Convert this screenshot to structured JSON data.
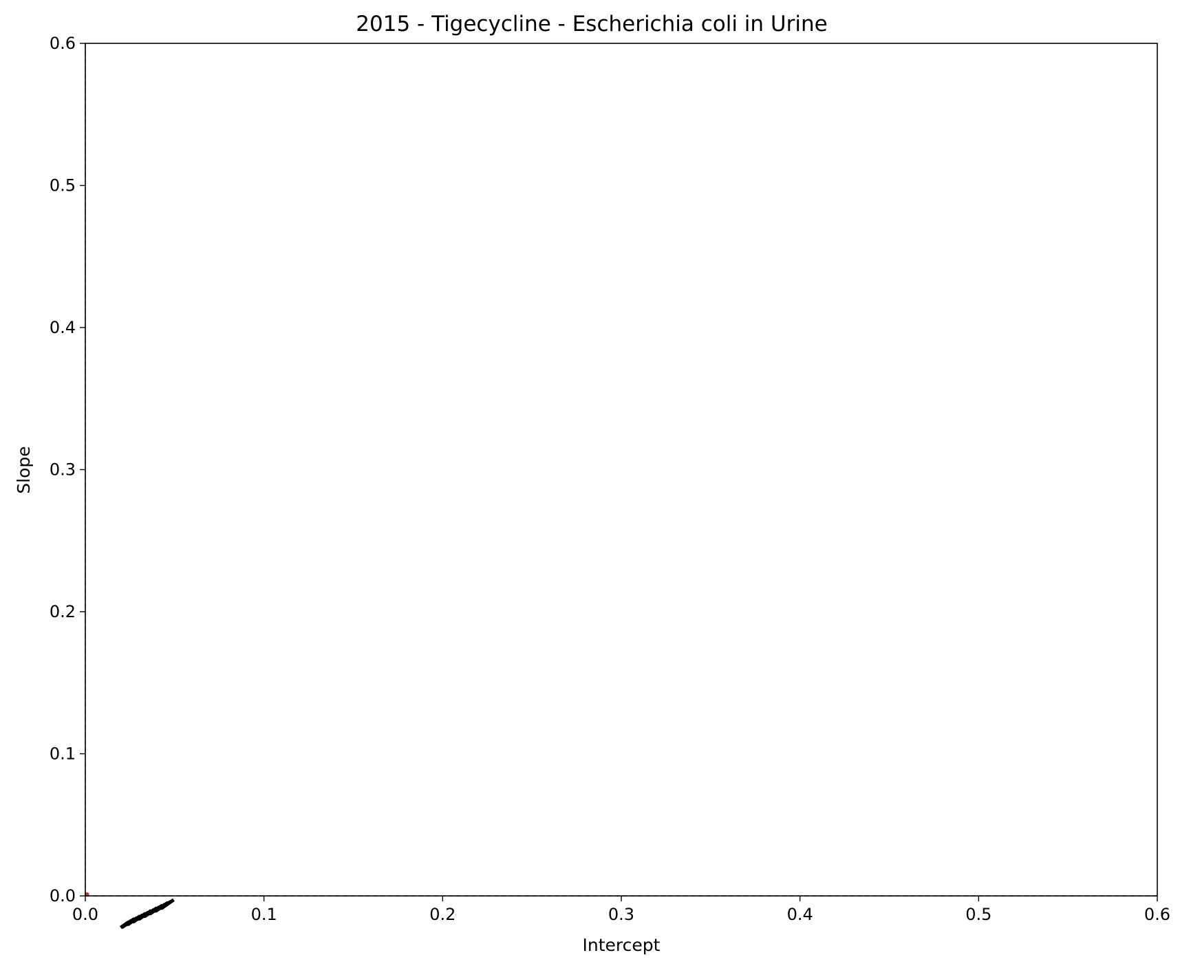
{
  "chart_data": {
    "type": "scatter",
    "title": "2015 - Tigecycline - Escherichia coli in Urine",
    "xlabel": "Intercept",
    "ylabel": "Slope",
    "xlim": [
      0.0,
      0.6
    ],
    "ylim": [
      0.0,
      0.6
    ],
    "xticks": [
      "0.0",
      "0.1",
      "0.2",
      "0.3",
      "0.4",
      "0.5",
      "0.6"
    ],
    "yticks": [
      "0.0",
      "0.1",
      "0.2",
      "0.3",
      "0.4",
      "0.5",
      "0.6"
    ],
    "grid": false,
    "reference_lines": [
      {
        "orientation": "vertical",
        "x": 0.0,
        "color": "#2ca02c",
        "style": "dashed"
      },
      {
        "orientation": "horizontal",
        "y": 0.0,
        "color": "#d62728",
        "style": "dashed"
      }
    ],
    "series": [
      {
        "color": "#d62728",
        "points": [
          {
            "x": 0.001,
            "y": 0.001
          }
        ]
      }
    ],
    "clustered_labels": {
      "color": "#000000",
      "rotation_deg": -35,
      "x_start": 0.022,
      "x_end": 0.046,
      "note_text": ""
    }
  }
}
